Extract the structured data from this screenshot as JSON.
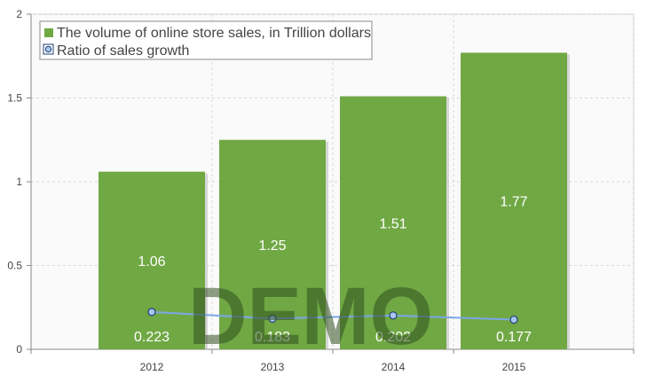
{
  "chart_data": {
    "type": "bar",
    "categories": [
      "2012",
      "2013",
      "2014",
      "2015"
    ],
    "series": [
      {
        "name": "The volume of online store sales, in Trillion dollars",
        "type": "bar",
        "values": [
          1.06,
          1.25,
          1.51,
          1.77
        ],
        "labels": [
          "1.06",
          "1.25",
          "1.51",
          "1.77"
        ]
      },
      {
        "name": "Ratio of sales growth",
        "type": "line",
        "values": [
          0.223,
          0.183,
          0.202,
          0.177
        ],
        "labels": [
          "0.223",
          "0.183",
          "0.202",
          "0.177"
        ]
      }
    ],
    "y_ticks": [
      "0",
      "0.5",
      "1",
      "1.5",
      "2"
    ],
    "ylim": [
      0,
      2
    ],
    "grid": true,
    "legend_position": "top-left",
    "watermark": "DEMO",
    "colors": {
      "bar": "#70a844",
      "line": "#7aa7e8",
      "marker_fill": "#a9c6f0",
      "marker_stroke": "#1f3f7a",
      "grid": "#d8d8d8",
      "plot_bg": "#fafafa"
    }
  }
}
